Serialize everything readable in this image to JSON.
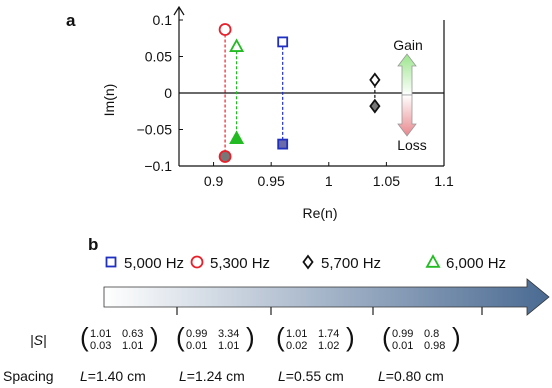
{
  "panel_a_label": "a",
  "panel_b_label": "b",
  "chart_data": {
    "type": "scatter",
    "xlabel": "Re(n)",
    "ylabel": "Im(n)",
    "xlim": [
      0.87,
      1.1
    ],
    "ylim": [
      -0.1,
      0.1
    ],
    "x_ticks": [
      0.9,
      0.95,
      1,
      1.05,
      1.1
    ],
    "x_tick_labels": [
      "0.9",
      "0.95",
      "1",
      "1.05",
      "1.1"
    ],
    "y_ticks": [
      -0.1,
      -0.05,
      0,
      0.05,
      0.1
    ],
    "y_tick_labels": [
      "−0.1",
      "−0.05",
      "0",
      "0.05",
      "0.1"
    ],
    "series": [
      {
        "name": "5,000 Hz",
        "marker": "square",
        "color": "#1f2fbf",
        "points": [
          {
            "x": 0.96,
            "y": 0.07,
            "filled": false
          },
          {
            "x": 0.96,
            "y": -0.07,
            "filled": true
          }
        ]
      },
      {
        "name": "5,300 Hz",
        "marker": "circle",
        "color": "#e8202a",
        "points": [
          {
            "x": 0.91,
            "y": 0.087,
            "filled": false
          },
          {
            "x": 0.91,
            "y": -0.087,
            "filled": true
          }
        ]
      },
      {
        "name": "5,700 Hz",
        "marker": "diamond",
        "color": "#111111",
        "points": [
          {
            "x": 1.04,
            "y": 0.018,
            "filled": false
          },
          {
            "x": 1.04,
            "y": -0.018,
            "filled": true
          }
        ]
      },
      {
        "name": "6,000 Hz",
        "marker": "triangle",
        "color": "#22bb22",
        "points": [
          {
            "x": 0.92,
            "y": 0.064,
            "filled": false
          },
          {
            "x": 0.92,
            "y": -0.062,
            "filled": true
          }
        ]
      }
    ],
    "annotations": {
      "gain_label": "Gain",
      "loss_label": "Loss",
      "gain_color": "#22aa22",
      "loss_color": "#b8222a"
    }
  },
  "panel_b": {
    "legend": [
      {
        "label": "5,000 Hz",
        "marker": "square",
        "color": "#1f2fbf"
      },
      {
        "label": "5,300 Hz",
        "marker": "circle",
        "color": "#e8202a"
      },
      {
        "label": "5,700 Hz",
        "marker": "diamond",
        "color": "#111111"
      },
      {
        "label": "6,000 Hz",
        "marker": "triangle",
        "color": "#22bb22"
      }
    ],
    "s_label": "|S|",
    "matrices": [
      {
        "a": "1.01",
        "b": "0.63",
        "c": "0.03",
        "d": "1.01"
      },
      {
        "a": "0.99",
        "b": "3.34",
        "c": "0.01",
        "d": "1.01"
      },
      {
        "a": "1.01",
        "b": "1.74",
        "c": "0.02",
        "d": "1.02"
      },
      {
        "a": "0.99",
        "b": "0.8",
        "c": "0.01",
        "d": "0.98"
      }
    ],
    "spacing_label": "Spacing",
    "spacings": [
      "L=1.40 cm",
      "L=1.24 cm",
      "L=0.55 cm",
      "L=0.80 cm"
    ]
  }
}
